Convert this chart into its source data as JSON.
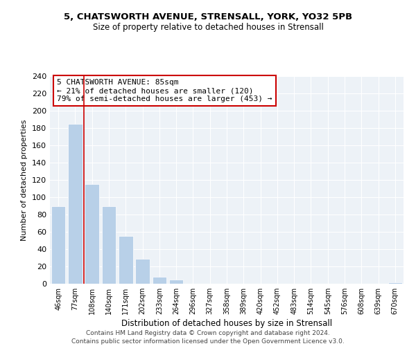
{
  "title1": "5, CHATSWORTH AVENUE, STRENSALL, YORK, YO32 5PB",
  "title2": "Size of property relative to detached houses in Strensall",
  "xlabel": "Distribution of detached houses by size in Strensall",
  "ylabel": "Number of detached properties",
  "bar_labels": [
    "46sqm",
    "77sqm",
    "108sqm",
    "140sqm",
    "171sqm",
    "202sqm",
    "233sqm",
    "264sqm",
    "296sqm",
    "327sqm",
    "358sqm",
    "389sqm",
    "420sqm",
    "452sqm",
    "483sqm",
    "514sqm",
    "545sqm",
    "576sqm",
    "608sqm",
    "639sqm",
    "670sqm"
  ],
  "bar_values": [
    90,
    185,
    115,
    90,
    55,
    29,
    8,
    5,
    0,
    0,
    0,
    0,
    0,
    0,
    0,
    0,
    0,
    0,
    0,
    0,
    2
  ],
  "bar_color": "#b8d0e8",
  "ylim": [
    0,
    240
  ],
  "yticks": [
    0,
    20,
    40,
    60,
    80,
    100,
    120,
    140,
    160,
    180,
    200,
    220,
    240
  ],
  "vline_x": 1.5,
  "annotation_title": "5 CHATSWORTH AVENUE: 85sqm",
  "annotation_line1": "← 21% of detached houses are smaller (120)",
  "annotation_line2": "79% of semi-detached houses are larger (453) →",
  "footer1": "Contains HM Land Registry data © Crown copyright and database right 2024.",
  "footer2": "Contains public sector information licensed under the Open Government Licence v3.0.",
  "vline_color": "#cc0000",
  "annotation_box_color": "#cc0000",
  "background_color": "#edf2f7"
}
